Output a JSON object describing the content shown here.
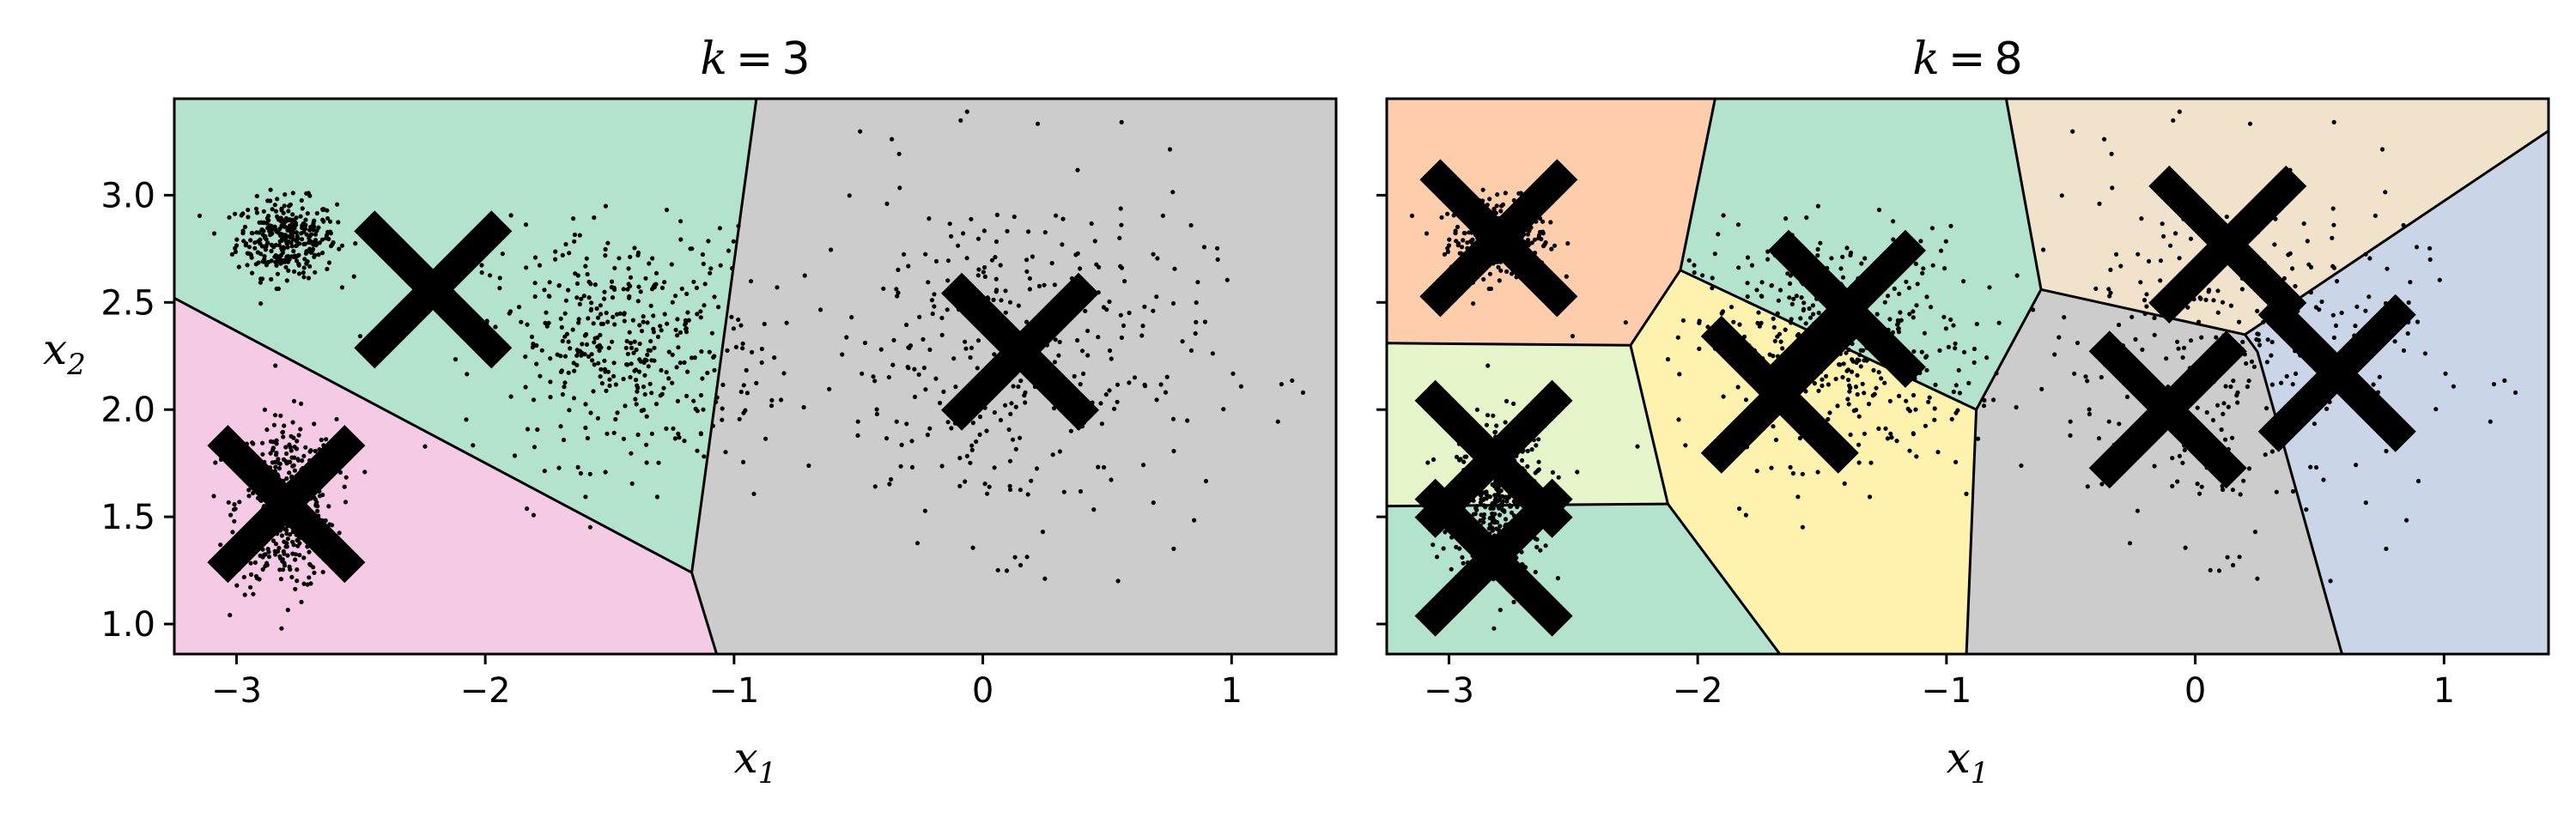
{
  "colors": {
    "grey": "#cccccc",
    "green": "#b3e2cd",
    "pink": "#f4cae4",
    "orange": "#fdcdac",
    "beige": "#f1e2cc",
    "lightgreen": "#e6f5c9",
    "yellow": "#fff2ae",
    "blue": "#cbd5e8"
  },
  "chart_data": [
    {
      "type": "scatter",
      "title_var": "k",
      "title_eq": "=",
      "title_val": "3",
      "xlabel_var": "x",
      "xlabel_sub": "1",
      "ylabel_var": "x",
      "ylabel_sub": "2",
      "xlim": [
        -3.25,
        1.42
      ],
      "ylim": [
        0.86,
        3.45
      ],
      "xticks": [
        {
          "v": -3,
          "label": "−3"
        },
        {
          "v": -2,
          "label": "−2"
        },
        {
          "v": -1,
          "label": "−1"
        },
        {
          "v": 0,
          "label": "0"
        },
        {
          "v": 1,
          "label": "1"
        }
      ],
      "yticks": [
        {
          "v": 1.0,
          "label": "1.0"
        },
        {
          "v": 1.5,
          "label": "1.5"
        },
        {
          "v": 2.0,
          "label": "2.0"
        },
        {
          "v": 2.5,
          "label": "2.5"
        },
        {
          "v": 3.0,
          "label": "3.0"
        }
      ],
      "show_ylabels": true,
      "centroids": [
        [
          -2.21,
          2.56
        ],
        [
          -2.8,
          1.56
        ],
        [
          0.15,
          2.27
        ]
      ],
      "regions": [
        {
          "color": "grey",
          "polygon": [
            [
              -0.91,
              3.45
            ],
            [
              1.42,
              3.45
            ],
            [
              1.42,
              0.86
            ],
            [
              -1.07,
              0.86
            ],
            [
              -1.17,
              1.24
            ]
          ]
        },
        {
          "color": "green",
          "polygon": [
            [
              -3.25,
              3.45
            ],
            [
              -0.91,
              3.45
            ],
            [
              -1.17,
              1.24
            ],
            [
              -3.25,
              2.52
            ]
          ]
        },
        {
          "color": "pink",
          "polygon": [
            [
              -3.25,
              2.52
            ],
            [
              -1.17,
              1.24
            ],
            [
              -1.07,
              0.86
            ],
            [
              -3.25,
              0.86
            ]
          ]
        }
      ],
      "boundaries": [
        [
          [
            -0.91,
            3.45
          ],
          [
            -1.17,
            1.24
          ],
          [
            -1.07,
            0.86
          ]
        ],
        [
          [
            -3.25,
            2.52
          ],
          [
            -1.17,
            1.24
          ]
        ]
      ]
    },
    {
      "type": "scatter",
      "title_var": "k",
      "title_eq": "=",
      "title_val": "8",
      "xlabel_var": "x",
      "xlabel_sub": "1",
      "ylabel_var": "",
      "ylabel_sub": "",
      "xlim": [
        -3.25,
        1.42
      ],
      "ylim": [
        0.86,
        3.45
      ],
      "xticks": [
        {
          "v": -3,
          "label": "−3"
        },
        {
          "v": -2,
          "label": "−2"
        },
        {
          "v": -1,
          "label": "−1"
        },
        {
          "v": 0,
          "label": "0"
        },
        {
          "v": 1,
          "label": "1"
        }
      ],
      "yticks": [
        {
          "v": 1.0,
          "label": ""
        },
        {
          "v": 1.5,
          "label": ""
        },
        {
          "v": 2.0,
          "label": ""
        },
        {
          "v": 2.5,
          "label": ""
        },
        {
          "v": 3.0,
          "label": ""
        }
      ],
      "show_ylabels": false,
      "centroids": [
        [
          -2.8,
          2.8
        ],
        [
          -1.4,
          2.47
        ],
        [
          -1.67,
          2.07
        ],
        [
          -2.82,
          1.77
        ],
        [
          -2.82,
          1.31
        ],
        [
          0.13,
          2.77
        ],
        [
          -0.11,
          2.0
        ],
        [
          0.57,
          2.17
        ]
      ],
      "regions": [
        {
          "color": "orange",
          "polygon": [
            [
              -3.25,
              3.45
            ],
            [
              -1.93,
              3.45
            ],
            [
              -2.07,
              2.65
            ],
            [
              -2.27,
              2.3
            ],
            [
              -3.25,
              2.31
            ]
          ]
        },
        {
          "color": "green",
          "polygon": [
            [
              -1.93,
              3.45
            ],
            [
              -0.76,
              3.45
            ],
            [
              -0.62,
              2.56
            ],
            [
              -0.88,
              2.0
            ],
            [
              -2.07,
              2.65
            ]
          ]
        },
        {
          "color": "beige",
          "polygon": [
            [
              -0.76,
              3.45
            ],
            [
              1.42,
              3.45
            ],
            [
              1.42,
              3.3
            ],
            [
              0.2,
              2.35
            ],
            [
              -0.62,
              2.56
            ]
          ]
        },
        {
          "color": "blue",
          "polygon": [
            [
              0.2,
              2.35
            ],
            [
              1.42,
              3.3
            ],
            [
              1.42,
              0.86
            ],
            [
              0.59,
              0.86
            ],
            [
              0.25,
              2.27
            ]
          ]
        },
        {
          "color": "grey",
          "polygon": [
            [
              -0.62,
              2.56
            ],
            [
              0.2,
              2.35
            ],
            [
              0.25,
              2.27
            ],
            [
              0.59,
              0.86
            ],
            [
              -0.92,
              0.86
            ],
            [
              -0.88,
              2.0
            ]
          ]
        },
        {
          "color": "yellow",
          "polygon": [
            [
              -2.07,
              2.65
            ],
            [
              -0.88,
              2.0
            ],
            [
              -0.92,
              0.86
            ],
            [
              -1.67,
              0.86
            ],
            [
              -2.12,
              1.56
            ],
            [
              -2.27,
              2.3
            ]
          ]
        },
        {
          "color": "lightgreen",
          "polygon": [
            [
              -3.25,
              2.31
            ],
            [
              -2.27,
              2.3
            ],
            [
              -2.12,
              1.56
            ],
            [
              -3.25,
              1.55
            ]
          ]
        },
        {
          "color": "green",
          "polygon": [
            [
              -3.25,
              1.55
            ],
            [
              -2.12,
              1.56
            ],
            [
              -1.67,
              0.86
            ],
            [
              -3.25,
              0.86
            ]
          ]
        }
      ],
      "boundaries": [
        [
          [
            -1.93,
            3.45
          ],
          [
            -2.07,
            2.65
          ],
          [
            -2.27,
            2.3
          ],
          [
            -3.25,
            2.31
          ]
        ],
        [
          [
            -2.07,
            2.65
          ],
          [
            -0.88,
            2.0
          ],
          [
            -0.92,
            0.86
          ]
        ],
        [
          [
            -0.76,
            3.45
          ],
          [
            -0.62,
            2.56
          ],
          [
            -0.88,
            2.0
          ]
        ],
        [
          [
            -0.62,
            2.56
          ],
          [
            0.2,
            2.35
          ],
          [
            1.42,
            3.3
          ]
        ],
        [
          [
            0.2,
            2.35
          ],
          [
            0.25,
            2.27
          ],
          [
            0.59,
            0.86
          ]
        ],
        [
          [
            -2.27,
            2.3
          ],
          [
            -2.12,
            1.56
          ],
          [
            -1.67,
            0.86
          ]
        ],
        [
          [
            -3.25,
            1.55
          ],
          [
            -2.12,
            1.56
          ]
        ]
      ]
    }
  ]
}
